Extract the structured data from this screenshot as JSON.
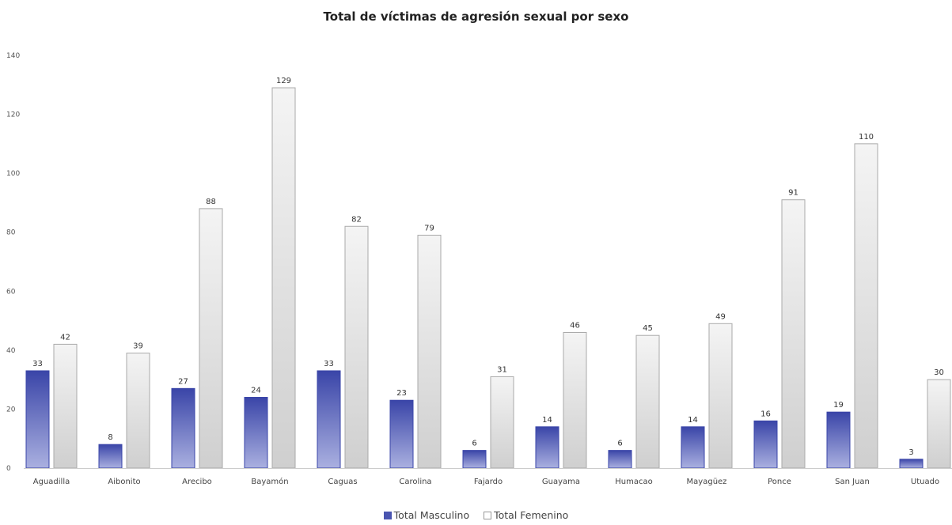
{
  "chart_data": {
    "type": "bar",
    "title": "Total de víctimas de agresión sexual por sexo",
    "categories": [
      "Aguadilla",
      "Aibonito",
      "Arecibo",
      "Bayamón",
      "Caguas",
      "Carolina",
      "Fajardo",
      "Guayama",
      "Humacao",
      "Mayagüez",
      "Ponce",
      "San Juan",
      "Utuado"
    ],
    "series": [
      {
        "name": "Total Masculino",
        "color": "#4a55b0",
        "values": [
          33,
          8,
          27,
          24,
          33,
          23,
          6,
          14,
          6,
          14,
          16,
          19,
          3
        ]
      },
      {
        "name": "Total Femenino",
        "color": "#d9d9d9",
        "values": [
          42,
          39,
          88,
          129,
          82,
          79,
          31,
          46,
          45,
          49,
          91,
          110,
          30
        ]
      }
    ],
    "ylim": [
      0,
      140
    ],
    "yticks": [
      0,
      20,
      40,
      60,
      80,
      100,
      120,
      140
    ],
    "grid": false,
    "legend_position": "bottom-center",
    "xlabel": "",
    "ylabel": ""
  }
}
